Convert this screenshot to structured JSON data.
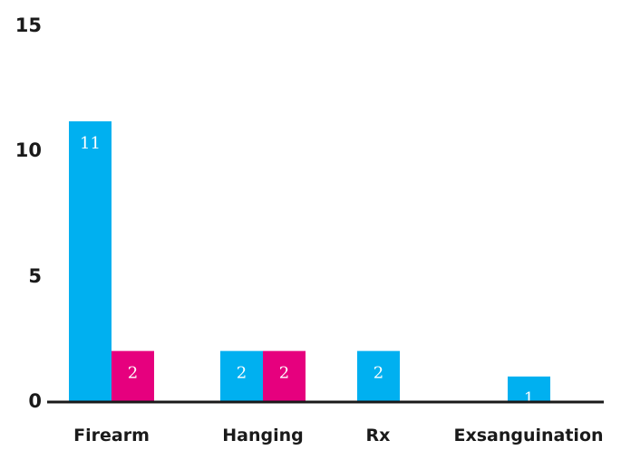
{
  "chart_data": {
    "type": "bar",
    "categories": [
      "Firearm",
      "Hanging",
      "Rx",
      "Exsanguination"
    ],
    "series": [
      {
        "values": [
          11,
          2,
          2,
          1
        ],
        "color": "#00b0f0"
      },
      {
        "values": [
          2,
          2,
          0,
          0
        ],
        "color": "#e6007e"
      }
    ],
    "ylim": [
      0,
      15
    ],
    "yticks": [
      0,
      5,
      10,
      15
    ],
    "grid": false,
    "legend": "none",
    "data_labels": true
  }
}
